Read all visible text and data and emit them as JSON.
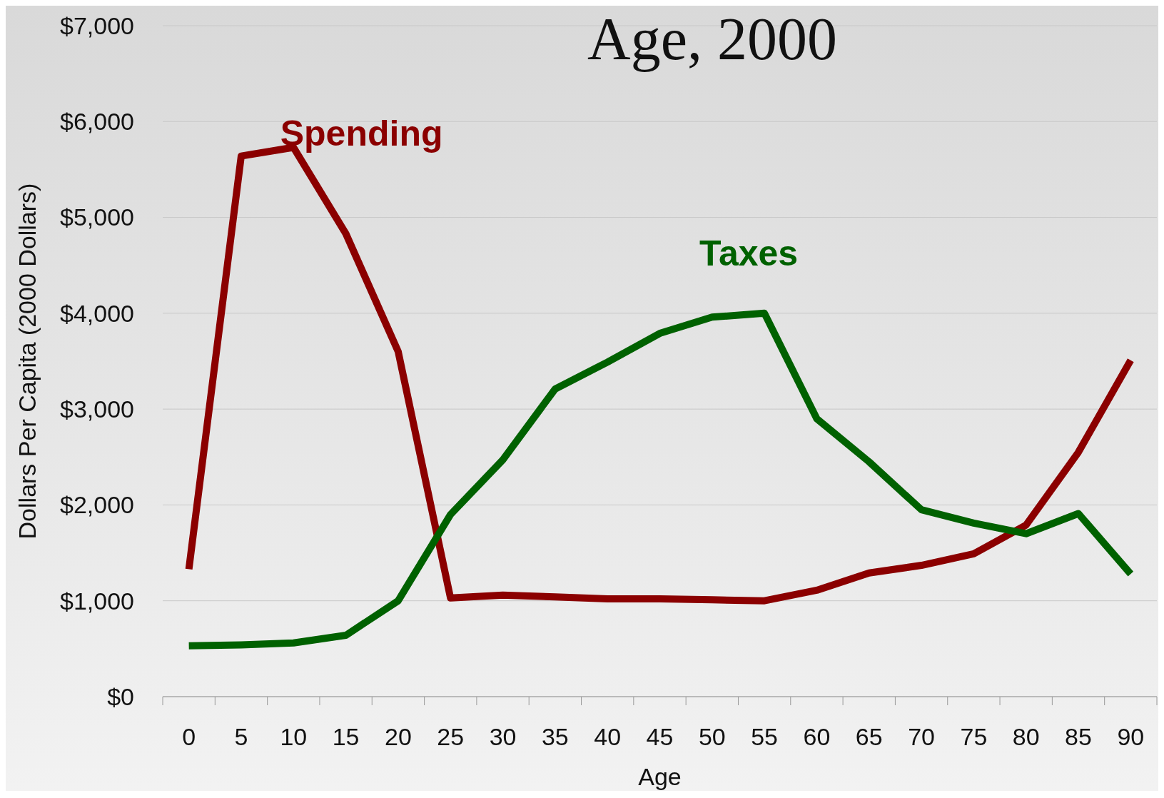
{
  "chart_data": {
    "type": "line",
    "title": "Age, 2000",
    "xlabel": "Age",
    "ylabel": "Dollars Per Capita (2000 Dollars)",
    "categories": [
      "0",
      "5",
      "10",
      "15",
      "20",
      "25",
      "30",
      "35",
      "40",
      "45",
      "50",
      "55",
      "60",
      "65",
      "70",
      "75",
      "80",
      "85",
      "90"
    ],
    "series": [
      {
        "name": "Spending",
        "color": "#8b0000",
        "values": [
          1330,
          5640,
          5730,
          4830,
          3600,
          1030,
          1060,
          1040,
          1020,
          1020,
          1010,
          1000,
          1110,
          1290,
          1370,
          1490,
          1790,
          2550,
          3510
        ]
      },
      {
        "name": "Taxes",
        "color": "#006100",
        "values": [
          530,
          540,
          560,
          640,
          1000,
          1900,
          2470,
          3210,
          3490,
          3790,
          3960,
          4000,
          2900,
          2450,
          1950,
          1810,
          1700,
          1910,
          1280
        ]
      }
    ],
    "ylim": [
      0,
      7000
    ],
    "yticks": [
      {
        "value": 0,
        "label": "$0"
      },
      {
        "value": 1000,
        "label": "$1,000"
      },
      {
        "value": 2000,
        "label": "$2,000"
      },
      {
        "value": 3000,
        "label": "$3,000"
      },
      {
        "value": 4000,
        "label": "$4,000"
      },
      {
        "value": 5000,
        "label": "$5,000"
      },
      {
        "value": 6000,
        "label": "$6,000"
      },
      {
        "value": 7000,
        "label": "$7,000"
      }
    ],
    "grid": "y",
    "legend": false,
    "marker": "none",
    "line_style": "solid"
  }
}
